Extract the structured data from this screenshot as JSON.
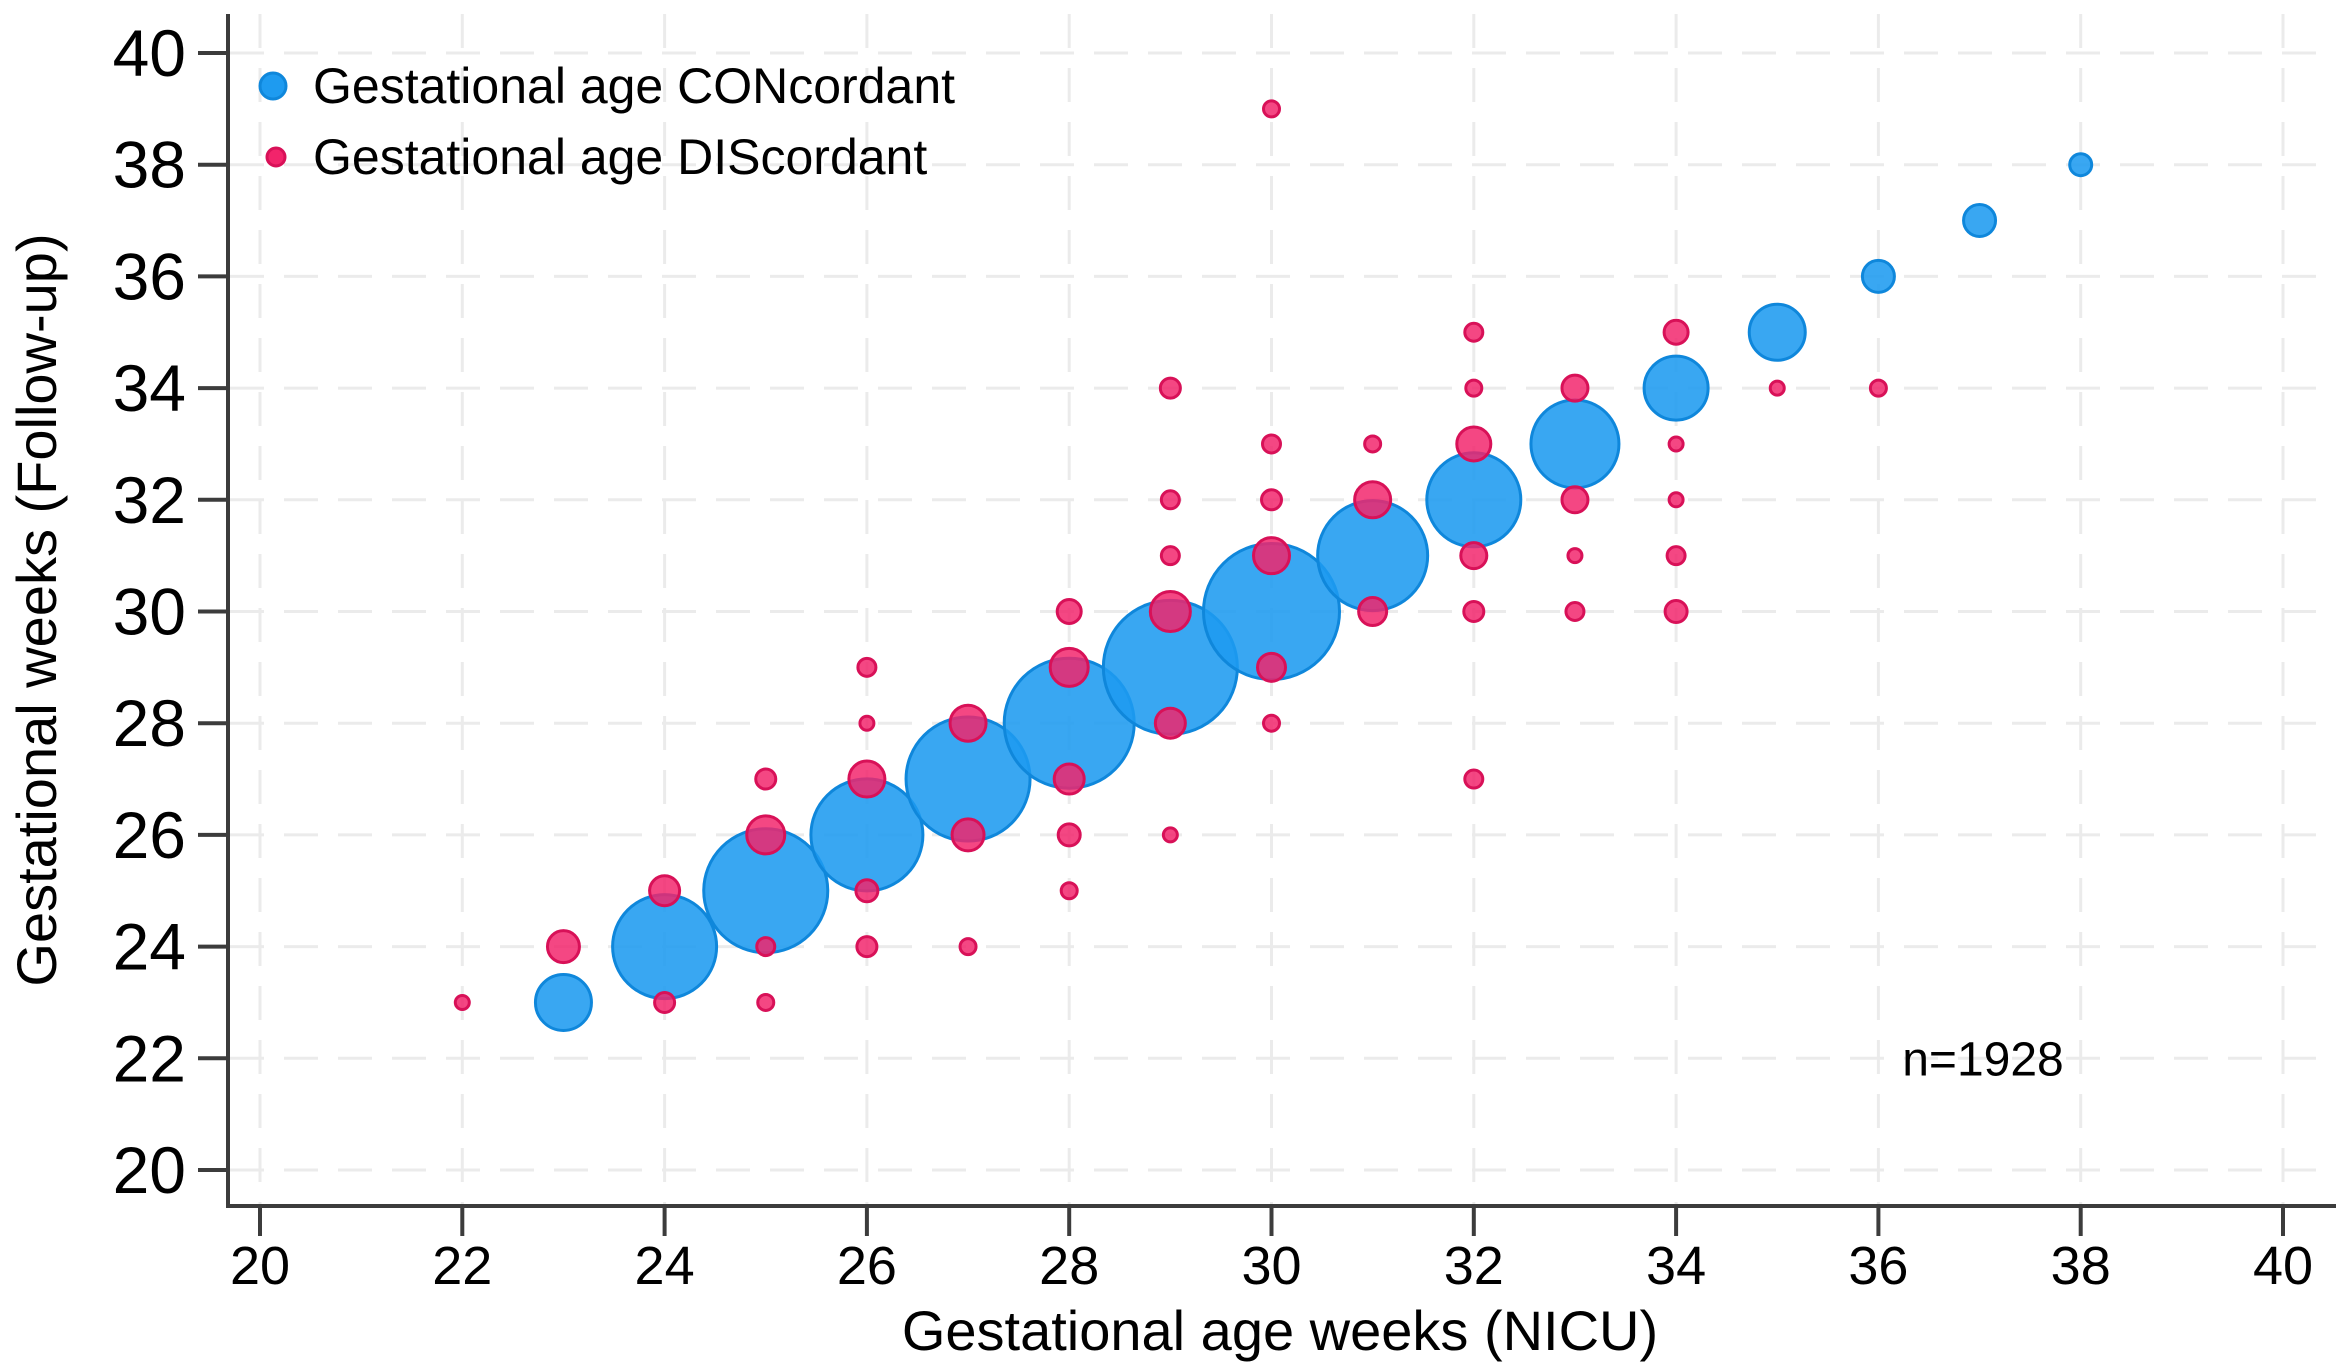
{
  "chart_data": {
    "type": "scatter",
    "subtype": "weighted-bubble-plot",
    "title": "",
    "xlabel": "Gestational age weeks (NICU)",
    "ylabel": "Gestational weeks (Follow-up)",
    "xlim": [
      19.3,
      40.6
    ],
    "ylim": [
      19.4,
      40.9
    ],
    "xticks": [
      20,
      22,
      24,
      26,
      28,
      30,
      32,
      34,
      36,
      38,
      40
    ],
    "yticks": [
      20,
      22,
      24,
      26,
      28,
      30,
      32,
      34,
      36,
      38,
      40
    ],
    "grid": "both-axes-dashed-light-gray-at-even-weeks",
    "legend_position": "top-left-inside",
    "annotation": "n=1928",
    "series": [
      {
        "name": "Gestational age CONcordant",
        "color": "#1E9BF0",
        "stroke": "#0F87DB",
        "points": [
          {
            "x": 23,
            "y": 23,
            "r": 28
          },
          {
            "x": 24,
            "y": 24,
            "r": 52
          },
          {
            "x": 25,
            "y": 25,
            "r": 62
          },
          {
            "x": 26,
            "y": 26,
            "r": 56
          },
          {
            "x": 27,
            "y": 27,
            "r": 62
          },
          {
            "x": 28,
            "y": 28,
            "r": 65
          },
          {
            "x": 29,
            "y": 29,
            "r": 67
          },
          {
            "x": 30,
            "y": 30,
            "r": 68
          },
          {
            "x": 31,
            "y": 31,
            "r": 55
          },
          {
            "x": 32,
            "y": 32,
            "r": 47
          },
          {
            "x": 33,
            "y": 33,
            "r": 44
          },
          {
            "x": 34,
            "y": 34,
            "r": 32
          },
          {
            "x": 35,
            "y": 35,
            "r": 28
          },
          {
            "x": 36,
            "y": 36,
            "r": 16
          },
          {
            "x": 37,
            "y": 37,
            "r": 16
          },
          {
            "x": 38,
            "y": 38,
            "r": 11
          }
        ]
      },
      {
        "name": "Gestational age DIScordant",
        "color": "#F2246B",
        "stroke": "#D81158",
        "points": [
          {
            "x": 22,
            "y": 23,
            "r": 7
          },
          {
            "x": 23,
            "y": 24,
            "r": 16
          },
          {
            "x": 24,
            "y": 23,
            "r": 10
          },
          {
            "x": 24,
            "y": 25,
            "r": 15
          },
          {
            "x": 25,
            "y": 23,
            "r": 8
          },
          {
            "x": 25,
            "y": 24,
            "r": 9
          },
          {
            "x": 25,
            "y": 26,
            "r": 19
          },
          {
            "x": 25,
            "y": 27,
            "r": 10
          },
          {
            "x": 26,
            "y": 24,
            "r": 10
          },
          {
            "x": 26,
            "y": 25,
            "r": 11
          },
          {
            "x": 26,
            "y": 27,
            "r": 18
          },
          {
            "x": 26,
            "y": 28,
            "r": 7
          },
          {
            "x": 26,
            "y": 29,
            "r": 9
          },
          {
            "x": 27,
            "y": 24,
            "r": 8
          },
          {
            "x": 27,
            "y": 26,
            "r": 16
          },
          {
            "x": 27,
            "y": 28,
            "r": 18
          },
          {
            "x": 28,
            "y": 25,
            "r": 8
          },
          {
            "x": 28,
            "y": 26,
            "r": 11
          },
          {
            "x": 28,
            "y": 27,
            "r": 15
          },
          {
            "x": 28,
            "y": 29,
            "r": 19
          },
          {
            "x": 28,
            "y": 30,
            "r": 12
          },
          {
            "x": 29,
            "y": 26,
            "r": 7
          },
          {
            "x": 29,
            "y": 28,
            "r": 15
          },
          {
            "x": 29,
            "y": 30,
            "r": 20
          },
          {
            "x": 29,
            "y": 31,
            "r": 9
          },
          {
            "x": 29,
            "y": 32,
            "r": 9
          },
          {
            "x": 29,
            "y": 34,
            "r": 10
          },
          {
            "x": 30,
            "y": 28,
            "r": 8
          },
          {
            "x": 30,
            "y": 29,
            "r": 14
          },
          {
            "x": 30,
            "y": 31,
            "r": 18
          },
          {
            "x": 30,
            "y": 32,
            "r": 10
          },
          {
            "x": 30,
            "y": 33,
            "r": 9
          },
          {
            "x": 30,
            "y": 39,
            "r": 8
          },
          {
            "x": 31,
            "y": 30,
            "r": 14
          },
          {
            "x": 31,
            "y": 32,
            "r": 18
          },
          {
            "x": 31,
            "y": 33,
            "r": 8
          },
          {
            "x": 32,
            "y": 27,
            "r": 9
          },
          {
            "x": 32,
            "y": 30,
            "r": 10
          },
          {
            "x": 32,
            "y": 31,
            "r": 13
          },
          {
            "x": 32,
            "y": 33,
            "r": 17
          },
          {
            "x": 32,
            "y": 34,
            "r": 8
          },
          {
            "x": 32,
            "y": 35,
            "r": 9
          },
          {
            "x": 33,
            "y": 30,
            "r": 9
          },
          {
            "x": 33,
            "y": 31,
            "r": 7
          },
          {
            "x": 33,
            "y": 32,
            "r": 13
          },
          {
            "x": 33,
            "y": 34,
            "r": 13
          },
          {
            "x": 34,
            "y": 30,
            "r": 11
          },
          {
            "x": 34,
            "y": 31,
            "r": 9
          },
          {
            "x": 34,
            "y": 32,
            "r": 7
          },
          {
            "x": 34,
            "y": 33,
            "r": 7
          },
          {
            "x": 34,
            "y": 35,
            "r": 12
          },
          {
            "x": 35,
            "y": 34,
            "r": 7
          },
          {
            "x": 36,
            "y": 34,
            "r": 8
          }
        ]
      }
    ]
  },
  "legend": {
    "items": [
      {
        "label": "Gestational age CONcordant",
        "marker_r": 13
      },
      {
        "label": "Gestational age DIScordant",
        "marker_r": 9
      }
    ]
  },
  "annotation": {
    "label": "n=1928"
  },
  "colors": {
    "background": "#FFFFFF",
    "axis": "#3C3C3C",
    "grid": "#EBEBEB",
    "text": "#000000",
    "concordant_fill": "#1E9BF0",
    "concordant_stroke": "#0F87DB",
    "discordant_fill": "#F2246B",
    "discordant_stroke": "#D81158"
  }
}
